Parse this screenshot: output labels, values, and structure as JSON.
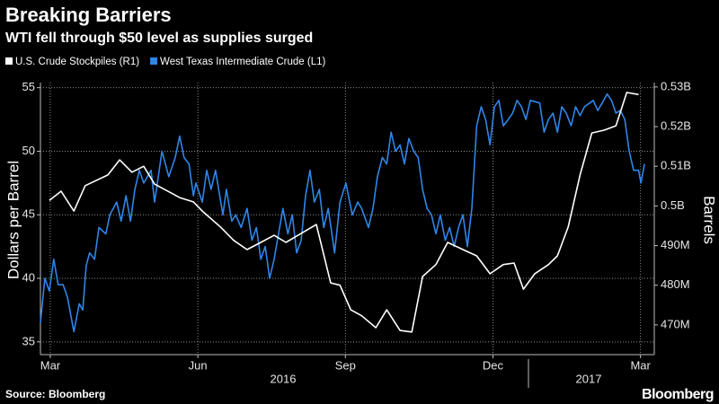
{
  "chart_data": {
    "type": "line",
    "title": "Breaking Barriers",
    "subtitle": "WTI fell through $50 level as supplies surged",
    "ylabel": "Dollars per Barrel",
    "y2label": "Barrels",
    "source": "Source: Bloomberg",
    "brand": "Bloomberg",
    "x_group_labels": [
      "2016",
      "2017"
    ],
    "grid": true,
    "xlim": [
      2.8,
      15.28
    ],
    "xticks": [
      {
        "value": 3,
        "label": "Mar"
      },
      {
        "value": 6,
        "label": "Jun"
      },
      {
        "value": 9,
        "label": "Sep"
      },
      {
        "value": 12,
        "label": "Dec"
      },
      {
        "value": 15,
        "label": "Mar"
      }
    ],
    "ylim": [
      34,
      55.4
    ],
    "yticks": [
      35,
      40,
      45,
      50,
      55
    ],
    "y2lim": [
      462.5,
      531.1
    ],
    "y2ticks": [
      {
        "value": 470,
        "label": "470M"
      },
      {
        "value": 480,
        "label": "480M"
      },
      {
        "value": 490,
        "label": "490M"
      },
      {
        "value": 500,
        "label": "0.5B"
      },
      {
        "value": 510,
        "label": "0.51B"
      },
      {
        "value": 520,
        "label": "0.52B"
      },
      {
        "value": 530,
        "label": "0.53B"
      }
    ],
    "series": [
      {
        "name": "U.S. Crude Stockpiles (R1)",
        "color": "#ffffff",
        "axis": "y2",
        "x": [
          2.98,
          3.22,
          3.48,
          3.71,
          4.17,
          4.41,
          4.66,
          4.9,
          5.12,
          5.36,
          5.63,
          5.91,
          6.09,
          6.46,
          6.73,
          7.0,
          7.28,
          7.55,
          7.79,
          8.01,
          8.41,
          8.7,
          8.89,
          9.11,
          9.33,
          9.62,
          9.84,
          10.11,
          10.35,
          10.57,
          10.84,
          11.08,
          11.39,
          11.67,
          11.94,
          12.21,
          12.43,
          12.62,
          12.85,
          13.13,
          13.31,
          13.53,
          13.77,
          14.01,
          14.26,
          14.5,
          14.72,
          14.96
        ],
        "values": [
          501.4,
          503.7,
          498.7,
          505.1,
          507.8,
          511.6,
          508.5,
          510.0,
          505.5,
          503.9,
          502.1,
          501.0,
          498.7,
          494.7,
          491.3,
          489.0,
          490.8,
          492.6,
          490.8,
          492.4,
          495.3,
          480.6,
          480.0,
          473.8,
          472.3,
          469.3,
          473.8,
          468.6,
          468.2,
          482.2,
          485.2,
          490.8,
          489.0,
          487.4,
          482.9,
          485.2,
          485.6,
          479.0,
          482.9,
          485.2,
          487.4,
          494.7,
          507.8,
          518.4,
          519.1,
          520.2,
          528.6,
          528.1
        ]
      },
      {
        "name": "West Texas Intermediate Crude (L1)",
        "color": "#2f86e8",
        "axis": "y",
        "x": [
          2.8,
          2.89,
          2.98,
          3.07,
          3.16,
          3.26,
          3.35,
          3.48,
          3.59,
          3.66,
          3.73,
          3.8,
          3.9,
          3.99,
          4.13,
          4.21,
          4.35,
          4.44,
          4.54,
          4.63,
          4.72,
          4.81,
          4.9,
          5.05,
          5.12,
          5.27,
          5.41,
          5.54,
          5.63,
          5.72,
          5.82,
          5.91,
          5.96,
          6.09,
          6.18,
          6.27,
          6.36,
          6.51,
          6.58,
          6.69,
          6.77,
          6.88,
          7.0,
          7.1,
          7.19,
          7.28,
          7.37,
          7.46,
          7.55,
          7.64,
          7.73,
          7.83,
          7.92,
          8.01,
          8.1,
          8.19,
          8.28,
          8.37,
          8.47,
          8.56,
          8.65,
          8.78,
          8.89,
          9.01,
          9.14,
          9.25,
          9.33,
          9.47,
          9.56,
          9.65,
          9.75,
          9.84,
          9.93,
          10.02,
          10.11,
          10.2,
          10.29,
          10.39,
          10.48,
          10.57,
          10.66,
          10.75,
          10.84,
          10.93,
          11.03,
          11.12,
          11.21,
          11.3,
          11.39,
          11.48,
          11.57,
          11.67,
          11.76,
          11.85,
          11.94,
          12.03,
          12.12,
          12.21,
          12.31,
          12.4,
          12.49,
          12.58,
          12.67,
          12.76,
          12.95,
          13.04,
          13.13,
          13.22,
          13.31,
          13.4,
          13.49,
          13.59,
          13.68,
          13.77,
          13.86,
          14.04,
          14.13,
          14.22,
          14.32,
          14.41,
          14.5,
          14.59,
          14.68,
          14.77,
          14.86,
          14.96,
          15.01,
          15.08
        ],
        "values": [
          36.5,
          40,
          39,
          41.5,
          39.5,
          39.5,
          38.5,
          35.8,
          38,
          37.5,
          41,
          42,
          41.5,
          44,
          43.5,
          45,
          46,
          44.5,
          46.5,
          44.5,
          47,
          48.5,
          47.5,
          48.5,
          46,
          50,
          48,
          49.5,
          51.2,
          49.5,
          49,
          46.5,
          47.5,
          46,
          48.5,
          47,
          48.5,
          45,
          47,
          44.5,
          45,
          44,
          45.5,
          43,
          44,
          41.5,
          42.5,
          40,
          41.5,
          43.5,
          45.5,
          43.5,
          45,
          42,
          43,
          46.5,
          48.5,
          46,
          47,
          44,
          45.5,
          42,
          46,
          47.5,
          45,
          46,
          45.5,
          44,
          45.5,
          48,
          49.5,
          49,
          51.5,
          50,
          50.5,
          49,
          51,
          50,
          49.5,
          47,
          45.5,
          45,
          43.5,
          45,
          43,
          44,
          42.5,
          44,
          45,
          42.5,
          45.5,
          52,
          53.5,
          52.5,
          50.5,
          53.5,
          54,
          52,
          52.5,
          53,
          54,
          53.5,
          52.5,
          54,
          53.8,
          51.5,
          52.5,
          53,
          51.5,
          53.5,
          53,
          52,
          53.5,
          52.8,
          53.5,
          54,
          53.2,
          53.8,
          54.5,
          54,
          53,
          53.2,
          52.5,
          50,
          48.5,
          48.5,
          47.5,
          49
        ]
      }
    ]
  }
}
